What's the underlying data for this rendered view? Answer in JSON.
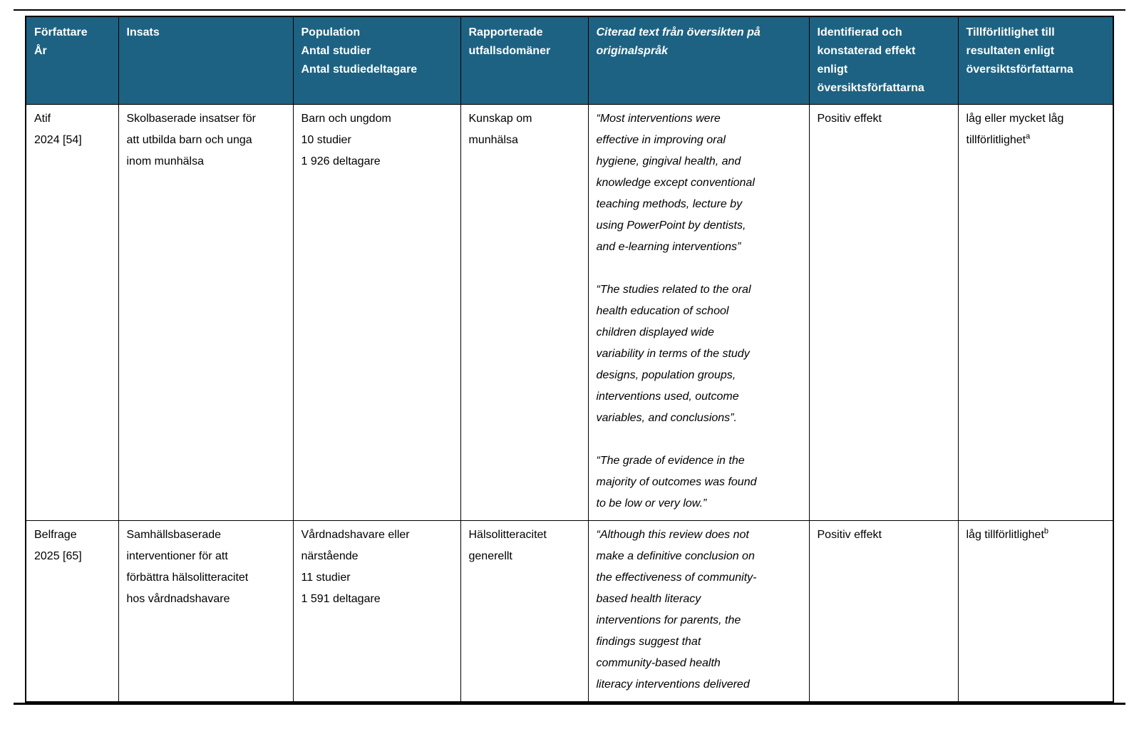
{
  "page": {
    "background": "#ffffff",
    "rule_color": "#000000"
  },
  "table": {
    "header": {
      "bg": "#1d6282",
      "text_color": "#ffffff",
      "columns": [
        {
          "id": "forfattare-ar",
          "lines": [
            "Författare",
            "År"
          ]
        },
        {
          "id": "insats",
          "lines": [
            "Insats"
          ]
        },
        {
          "id": "population",
          "lines": [
            "Population",
            "Antal studier",
            "Antal studiedeltagare"
          ]
        },
        {
          "id": "utfallsdomaner",
          "lines": [
            "Rapporterade",
            "utfallsdomäner"
          ]
        },
        {
          "id": "citerad-text",
          "lines": [
            "Citerad text från översikten på",
            "originalspråk"
          ],
          "italic": true
        },
        {
          "id": "effekt",
          "lines": [
            "Identifierad och",
            "konstaterad effekt",
            "enligt",
            "översiktsförfattarna"
          ]
        },
        {
          "id": "tillforlitlighet",
          "lines": [
            "Tillförlitlighet till",
            "resultaten enligt",
            "översiktsförfattarna"
          ]
        }
      ]
    },
    "rows": [
      {
        "author_lines": [
          "Atif",
          "2024 [54]"
        ],
        "insats_lines": [
          "Skolbaserade insatser för",
          "att utbilda barn och unga",
          "inom munhälsa"
        ],
        "population_lines": [
          "Barn och ungdom",
          "10 studier",
          "1 926 deltagare"
        ],
        "domain_lines": [
          "Kunskap om",
          "munhälsa"
        ],
        "quote_paragraphs": [
          {
            "lines": [
              "“Most interventions were",
              "effective in improving oral",
              "hygiene, gingival health, and",
              "knowledge except conventional",
              "teaching methods, lecture by",
              "using PowerPoint by dentists,",
              "and e-learning interventions”"
            ]
          },
          {
            "lines": [
              "“The studies related to the oral",
              "health education of school",
              "children displayed wide",
              "variability in terms of the study",
              "designs, population groups,",
              "interventions used, outcome",
              "variables, and conclusions”."
            ]
          },
          {
            "lines": [
              "“The grade of evidence in the",
              "majority of outcomes was found",
              "to be low or very low.”"
            ]
          }
        ],
        "effect": "Positiv effekt",
        "reliability_line1": "låg eller mycket låg",
        "reliability_line2": "tillförlitlighet",
        "reliability_sup": "a"
      },
      {
        "author_lines": [
          "Belfrage",
          "2025 [65]"
        ],
        "insats_lines": [
          "Samhällsbaserade",
          "interventioner för att",
          "förbättra hälsolitteracitet",
          "hos vårdnadshavare"
        ],
        "population_lines": [
          "Vårdnadshavare eller",
          "närstående",
          "11 studier",
          "1 591 deltagare"
        ],
        "domain_lines": [
          "Hälsolitteracitet",
          "generellt"
        ],
        "quote_paragraphs": [
          {
            "lines": [
              "“Although this review does not",
              "make a definitive conclusion on",
              "the effectiveness of community-",
              "based health literacy",
              "interventions for parents, the",
              "findings suggest that",
              "community-based health",
              "literacy interventions delivered"
            ]
          }
        ],
        "effect": "Positiv effekt",
        "reliability_line1": "låg tillförlitlighet",
        "reliability_sup": "b"
      }
    ]
  }
}
